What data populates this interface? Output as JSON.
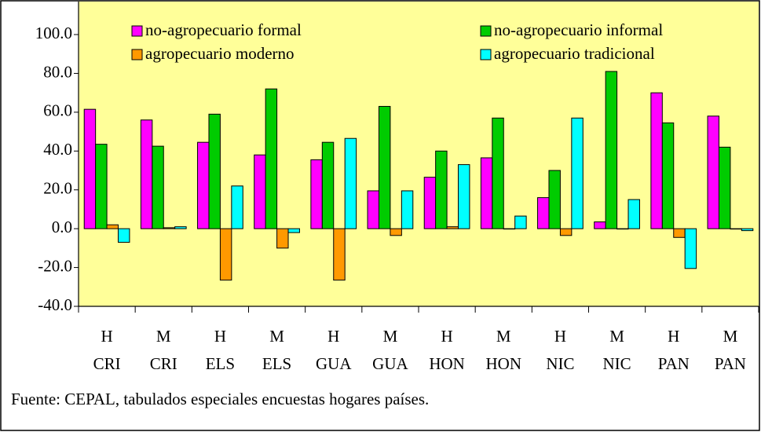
{
  "chart_data": {
    "type": "bar",
    "categories": [
      [
        "H",
        "CRI"
      ],
      [
        "M",
        "CRI"
      ],
      [
        "H",
        "ELS"
      ],
      [
        "M",
        "ELS"
      ],
      [
        "H",
        "GUA"
      ],
      [
        "M",
        "GUA"
      ],
      [
        "H",
        "HON"
      ],
      [
        "M",
        "HON"
      ],
      [
        "H",
        "NIC"
      ],
      [
        "M",
        "NIC"
      ],
      [
        "H",
        "PAN"
      ],
      [
        "M",
        "PAN"
      ]
    ],
    "series": [
      {
        "name": "no-agropecuario formal",
        "color": "#ff00ff",
        "values": [
          61.5,
          56,
          44.5,
          38,
          35.5,
          19.5,
          26.5,
          36.5,
          16,
          3.5,
          70,
          58
        ]
      },
      {
        "name": "no-agropecuario informal",
        "color": "#00cc00",
        "values": [
          43.5,
          42.5,
          59,
          72,
          44.5,
          63,
          40,
          57,
          30,
          81,
          54.5,
          42
        ]
      },
      {
        "name": "agropecuario moderno",
        "color": "#ff9900",
        "values": [
          2,
          0.5,
          -26.5,
          -10,
          -26.5,
          -3.5,
          1,
          0,
          -3.5,
          0,
          -4.5,
          0
        ]
      },
      {
        "name": "agropecuario tradicional",
        "color": "#00ffff",
        "values": [
          -7,
          1,
          22,
          -2,
          46.5,
          19.5,
          33,
          6.5,
          57,
          15,
          -20.5,
          -1
        ]
      }
    ],
    "ylim": [
      -40,
      117
    ],
    "yticks": [
      {
        "value": -40,
        "label": "-40.0"
      },
      {
        "value": -20,
        "label": "-20.0"
      },
      {
        "value": 0,
        "label": "0.0"
      },
      {
        "value": 20,
        "label": "20.0"
      },
      {
        "value": 40,
        "label": "40.0"
      },
      {
        "value": 60,
        "label": "60.0"
      },
      {
        "value": 80,
        "label": "80.0"
      },
      {
        "value": 100,
        "label": "100.0"
      }
    ],
    "grid": false,
    "legend": "top",
    "source": "Fuente: CEPAL, tabulados especiales encuestas hogares países."
  }
}
